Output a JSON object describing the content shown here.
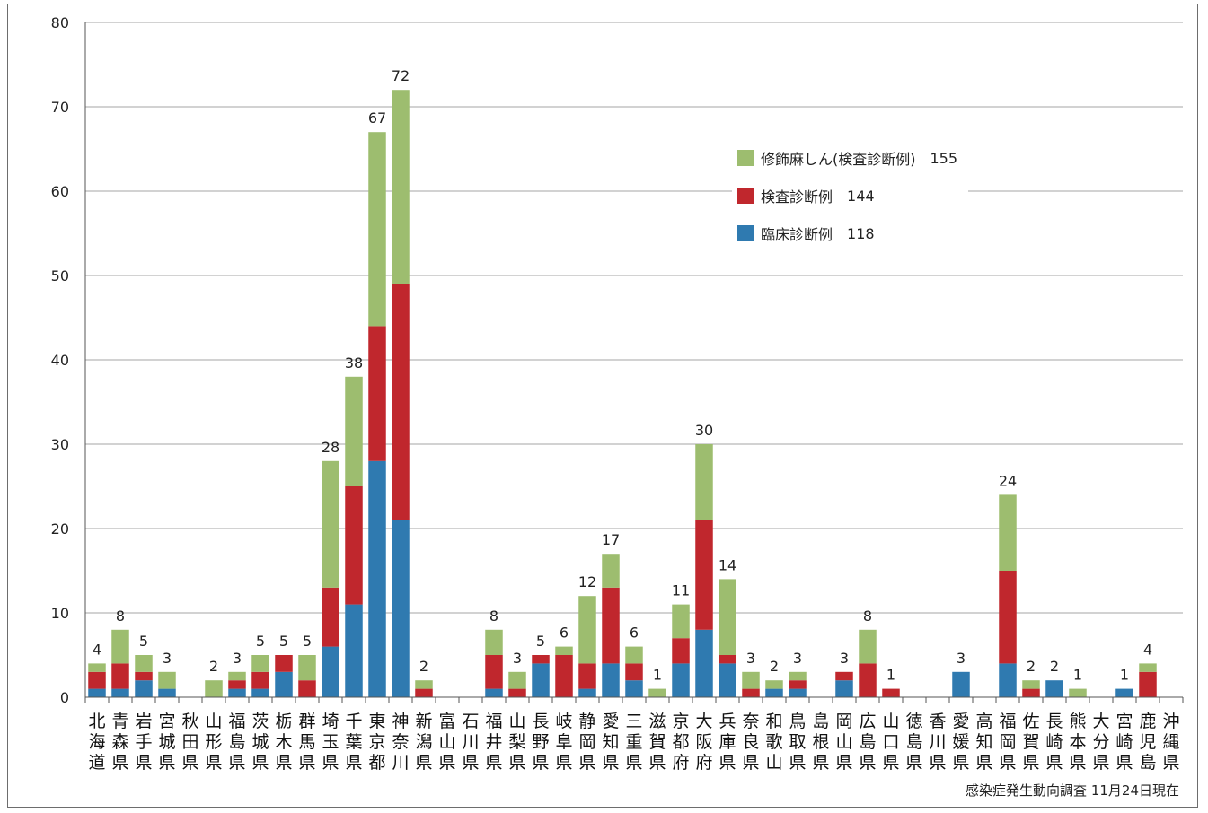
{
  "chart_data": {
    "type": "bar",
    "stacked": true,
    "ylim": [
      0,
      80
    ],
    "yticks": [
      0,
      10,
      20,
      30,
      40,
      50,
      60,
      70,
      80
    ],
    "grid": true,
    "legend_position": "top-right",
    "categories": [
      "北海道",
      "青森県",
      "岩手県",
      "宮城県",
      "秋田県",
      "山形県",
      "福島県",
      "茨城県",
      "栃木県",
      "群馬県",
      "埼玉県",
      "千葉県",
      "東京都",
      "神奈川",
      "新潟県",
      "富山県",
      "石川県",
      "福井県",
      "山梨県",
      "長野県",
      "岐阜県",
      "静岡県",
      "愛知県",
      "三重県",
      "滋賀県",
      "京都府",
      "大阪府",
      "兵庫県",
      "奈良県",
      "和歌山",
      "鳥取県",
      "島根県",
      "岡山県",
      "広島県",
      "山口県",
      "徳島県",
      "香川県",
      "愛媛県",
      "高知県",
      "福岡県",
      "佐賀県",
      "長崎県",
      "熊本県",
      "大分県",
      "宮崎県",
      "鹿児島",
      "沖縄県"
    ],
    "series": [
      {
        "name": "臨床診断例",
        "count_label": "118",
        "color": "#2f7ab0",
        "values": [
          1,
          1,
          2,
          1,
          0,
          0,
          1,
          1,
          3,
          0,
          6,
          11,
          28,
          21,
          0,
          0,
          0,
          1,
          0,
          4,
          0,
          1,
          4,
          2,
          0,
          4,
          8,
          4,
          0,
          1,
          1,
          0,
          2,
          0,
          0,
          0,
          0,
          3,
          0,
          4,
          0,
          2,
          0,
          0,
          1,
          0,
          0
        ]
      },
      {
        "name": "検査診断例",
        "count_label": "144",
        "color": "#c0272d",
        "values": [
          2,
          3,
          1,
          0,
          0,
          0,
          1,
          2,
          2,
          2,
          7,
          14,
          16,
          28,
          1,
          0,
          0,
          4,
          1,
          1,
          5,
          3,
          9,
          2,
          0,
          3,
          13,
          1,
          1,
          0,
          1,
          0,
          1,
          4,
          1,
          0,
          0,
          0,
          0,
          11,
          1,
          0,
          0,
          0,
          0,
          3,
          0
        ]
      },
      {
        "name": "修飾麻しん(検査診断例)",
        "count_label": "155",
        "color": "#9dbd6f",
        "values": [
          1,
          4,
          2,
          2,
          0,
          2,
          1,
          2,
          0,
          3,
          15,
          13,
          23,
          23,
          1,
          0,
          0,
          3,
          2,
          0,
          1,
          8,
          4,
          2,
          1,
          4,
          9,
          9,
          2,
          1,
          1,
          0,
          0,
          4,
          0,
          0,
          0,
          0,
          0,
          9,
          1,
          0,
          1,
          0,
          0,
          1,
          0
        ]
      }
    ],
    "totals": [
      4,
      8,
      5,
      3,
      0,
      2,
      3,
      5,
      5,
      5,
      28,
      38,
      67,
      72,
      2,
      0,
      0,
      8,
      3,
      5,
      6,
      12,
      17,
      6,
      1,
      11,
      30,
      14,
      3,
      2,
      3,
      0,
      3,
      8,
      1,
      0,
      0,
      3,
      0,
      24,
      2,
      2,
      1,
      0,
      1,
      4,
      0
    ]
  },
  "source_note": "感染症発生動向調査 11月24日現在"
}
